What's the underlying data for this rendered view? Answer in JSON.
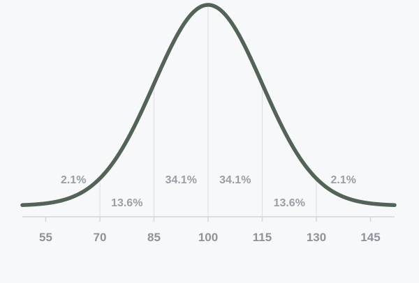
{
  "chart_data": {
    "type": "line",
    "distribution": "normal",
    "mean": 100,
    "sd": 15,
    "xlim": [
      45,
      150
    ],
    "ticks": [
      {
        "value": 55,
        "label": "55"
      },
      {
        "value": 70,
        "label": "70"
      },
      {
        "value": 85,
        "label": "85"
      },
      {
        "value": 100,
        "label": "100"
      },
      {
        "value": 115,
        "label": "115"
      },
      {
        "value": 130,
        "label": "130"
      },
      {
        "value": 145,
        "label": "145"
      }
    ],
    "segments": [
      {
        "from": 55,
        "to": 70,
        "label": "2.1%"
      },
      {
        "from": 70,
        "to": 85,
        "label": "13.6%"
      },
      {
        "from": 85,
        "to": 100,
        "label": "34.1%"
      },
      {
        "from": 100,
        "to": 115,
        "label": "34.1%"
      },
      {
        "from": 115,
        "to": 130,
        "label": "13.6%"
      },
      {
        "from": 130,
        "to": 145,
        "label": "2.1%"
      }
    ],
    "dividers": [
      70,
      85,
      100,
      115,
      130
    ],
    "colors": {
      "curve": "#536357",
      "background": "#f7f8fa",
      "axis": "#d3d6dc",
      "divider": "#dcdee2",
      "text": "#8e9299"
    },
    "grid": false,
    "legend": "none"
  }
}
